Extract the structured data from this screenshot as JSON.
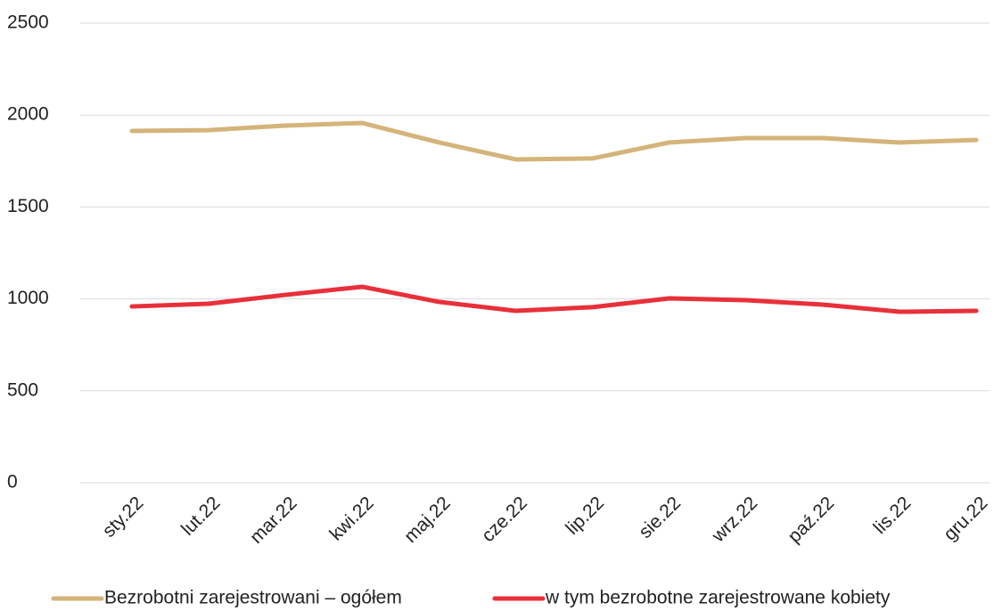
{
  "chart_data": {
    "type": "line",
    "categories": [
      "sty.22",
      "lut.22",
      "mar.22",
      "kwi.22",
      "maj.22",
      "cze.22",
      "lip.22",
      "sie.22",
      "wrz.22",
      "paź.22",
      "lis.22",
      "gru.22"
    ],
    "series": [
      {
        "name": "Bezrobotni zarejestrowani – ogółem",
        "color": "#d4b47a",
        "values": [
          1914,
          1918,
          1943,
          1957,
          1851,
          1759,
          1764,
          1851,
          1875,
          1875,
          1851,
          1865
        ]
      },
      {
        "name": "w tym bezrobotne zarejestrowane kobiety",
        "color": "#e8303a",
        "values": [
          959,
          974,
          1022,
          1066,
          984,
          935,
          955,
          1003,
          993,
          969,
          930,
          935
        ]
      }
    ],
    "ylim": [
      0,
      2500
    ],
    "yticks": [
      0,
      500,
      1000,
      1500,
      2000,
      2500
    ],
    "grid": true,
    "legend": "bottom"
  }
}
